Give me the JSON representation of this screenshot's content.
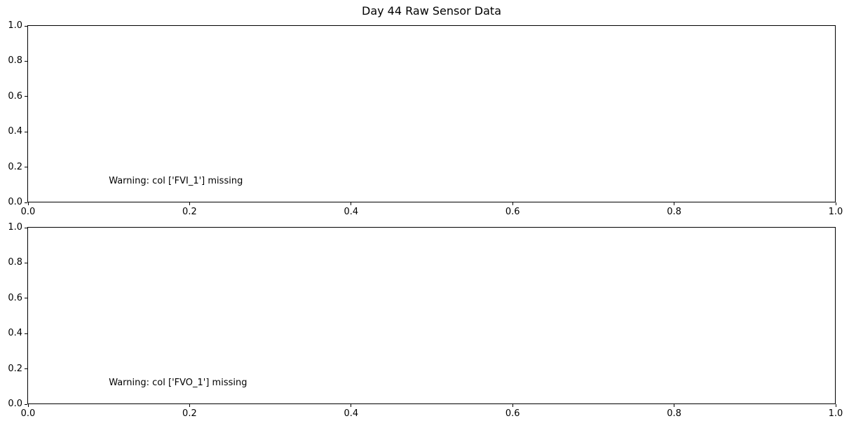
{
  "figure": {
    "title": "Day 44 Raw Sensor Data",
    "background_color": "#ffffff",
    "spine_color": "#000000",
    "text_color": "#000000"
  },
  "chart_data": [
    {
      "type": "line",
      "title": "",
      "x": [],
      "series": [],
      "xlim": [
        0.0,
        1.0
      ],
      "ylim": [
        0.0,
        1.0
      ],
      "xticks": [
        "0.0",
        "0.2",
        "0.4",
        "0.6",
        "0.8",
        "1.0"
      ],
      "yticks": [
        "0.0",
        "0.2",
        "0.4",
        "0.6",
        "0.8",
        "1.0"
      ],
      "grid": false,
      "legend": "none",
      "annotations": [
        {
          "text": "Warning: col ['FVI_1'] missing",
          "x": 0.1,
          "y": 0.1
        }
      ]
    },
    {
      "type": "line",
      "title": "",
      "x": [],
      "series": [],
      "xlim": [
        0.0,
        1.0
      ],
      "ylim": [
        0.0,
        1.0
      ],
      "xticks": [
        "0.0",
        "0.2",
        "0.4",
        "0.6",
        "0.8",
        "1.0"
      ],
      "yticks": [
        "0.0",
        "0.2",
        "0.4",
        "0.6",
        "0.8",
        "1.0"
      ],
      "grid": false,
      "legend": "none",
      "annotations": [
        {
          "text": "Warning: col ['FVO_1'] missing",
          "x": 0.1,
          "y": 0.1
        }
      ]
    }
  ]
}
